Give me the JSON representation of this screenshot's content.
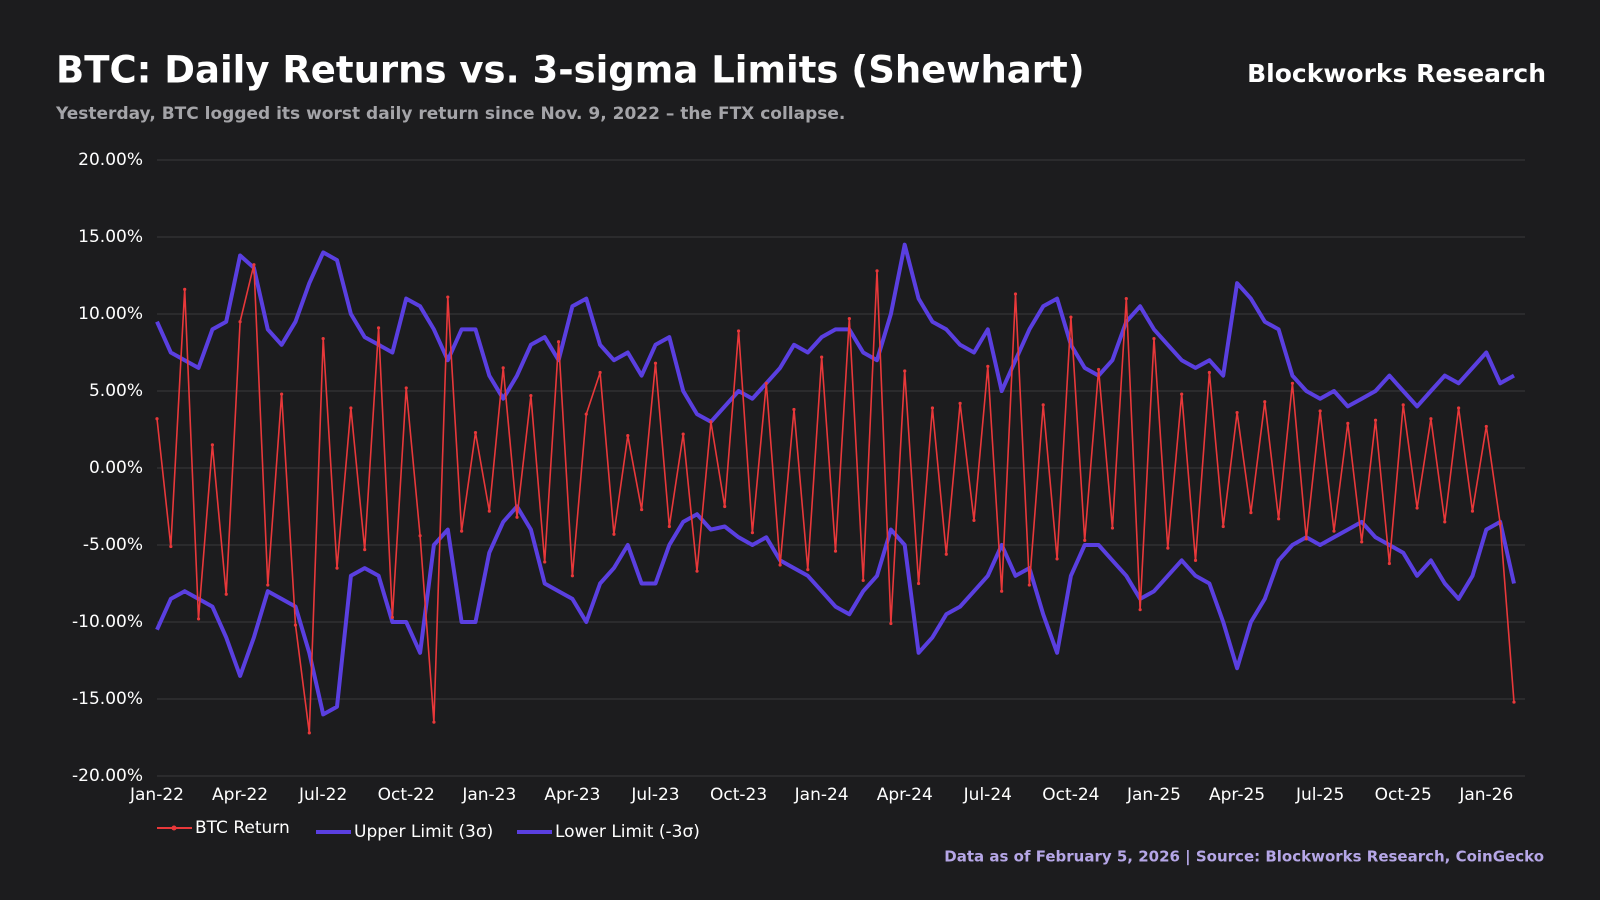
{
  "brand": "Blockworks Research",
  "footer": "Data as of February 5, 2026 | Source: Blockworks Research, CoinGecko",
  "chart_data": {
    "type": "line",
    "title": "BTC: Daily Returns vs. 3-sigma Limits (Shewhart)",
    "subtitle": "Yesterday, BTC logged its worst daily return since Nov. 9, 2022 – the FTX collapse.",
    "categories": [
      "Jan-22",
      null,
      null,
      null,
      null,
      null,
      "Apr-22",
      null,
      null,
      null,
      null,
      null,
      "Jul-22",
      null,
      null,
      null,
      null,
      null,
      "Oct-22",
      null,
      null,
      null,
      null,
      null,
      "Jan-23",
      null,
      null,
      null,
      null,
      null,
      "Apr-23",
      null,
      null,
      null,
      null,
      null,
      "Jul-23",
      null,
      null,
      null,
      null,
      null,
      "Oct-23",
      null,
      null,
      null,
      null,
      null,
      "Jan-24",
      null,
      null,
      null,
      null,
      null,
      "Apr-24",
      null,
      null,
      null,
      null,
      null,
      "Jul-24",
      null,
      null,
      null,
      null,
      null,
      "Oct-24",
      null,
      null,
      null,
      null,
      null,
      "Jan-25",
      null,
      null,
      null,
      null,
      null,
      "Apr-25",
      null,
      null,
      null,
      null,
      null,
      "Jul-25",
      null,
      null,
      null,
      null,
      null,
      "Oct-25",
      null,
      null,
      null,
      null,
      null,
      "Jan-26",
      null,
      null
    ],
    "series": [
      {
        "name": "BTC Return",
        "color": "#e8383a",
        "values": [
          3.2,
          -5.1,
          11.6,
          -9.8,
          1.5,
          -8.2,
          9.5,
          13.2,
          -7.6,
          4.8,
          -10.2,
          -17.2,
          8.4,
          -6.5,
          3.9,
          -5.3,
          9.1,
          -9.7,
          5.2,
          -4.4,
          -16.5,
          11.1,
          -4.1,
          2.3,
          -2.8,
          6.5,
          -3.2,
          4.7,
          -6.1,
          8.2,
          -7.0,
          3.5,
          6.2,
          -4.3,
          2.1,
          -2.7,
          6.8,
          -3.8,
          2.2,
          -6.7,
          3.0,
          -2.5,
          8.9,
          -4.2,
          5.5,
          -6.3,
          3.8,
          -6.6,
          7.2,
          -5.4,
          9.7,
          -7.3,
          12.8,
          -10.1,
          6.3,
          -7.5,
          3.9,
          -5.6,
          4.2,
          -3.4,
          6.6,
          -8.0,
          11.3,
          -7.6,
          4.1,
          -5.9,
          9.8,
          -4.7,
          6.4,
          -3.9,
          11.0,
          -9.2,
          8.4,
          -5.2,
          4.8,
          -6.0,
          6.2,
          -3.8,
          3.6,
          -2.9,
          4.3,
          -3.3,
          5.5,
          -4.6,
          3.7,
          -4.1,
          2.9,
          -4.8,
          3.1,
          -6.2,
          4.1,
          -2.6,
          3.2,
          -3.5,
          3.9,
          -2.8,
          2.7,
          -3.6,
          -15.2
        ]
      },
      {
        "name": "Upper Limit (3σ)",
        "color": "#5a3fe0",
        "values": [
          9.5,
          7.5,
          7,
          6.5,
          9,
          9.5,
          13.8,
          13,
          9,
          8,
          9.5,
          12,
          14,
          13.5,
          10,
          8.5,
          8,
          7.5,
          11,
          10.5,
          9,
          7,
          9,
          9,
          6,
          4.5,
          6,
          8,
          8.5,
          7,
          10.5,
          11,
          8,
          7,
          7.5,
          6,
          8,
          8.5,
          5,
          3.5,
          3,
          4,
          5,
          4.5,
          5.5,
          6.5,
          8,
          7.5,
          8.5,
          9,
          9,
          7.5,
          7,
          10,
          14.5,
          11,
          9.5,
          9,
          8,
          7.5,
          9,
          5,
          7,
          9,
          10.5,
          11,
          8,
          6.5,
          6,
          7,
          9.5,
          10.5,
          9,
          8,
          7,
          6.5,
          7,
          6,
          12,
          11,
          9.5,
          9,
          6,
          5,
          4.5,
          5,
          4,
          4.5,
          5,
          6,
          5,
          4,
          5,
          6,
          5.5,
          6.5,
          7.5,
          5.5,
          6
        ]
      },
      {
        "name": "Lower Limit (-3σ)",
        "color": "#5a3fe0",
        "values": [
          -10.5,
          -8.5,
          -8,
          -8.5,
          -9,
          -11,
          -13.5,
          -11,
          -8,
          -8.5,
          -9,
          -12,
          -16,
          -15.5,
          -7,
          -6.5,
          -7,
          -10,
          -10,
          -12,
          -5,
          -4,
          -10,
          -10,
          -5.5,
          -3.5,
          -2.5,
          -4,
          -7.5,
          -8,
          -8.5,
          -10,
          -7.5,
          -6.5,
          -5,
          -7.5,
          -7.5,
          -5,
          -3.5,
          -3,
          -4,
          -3.8,
          -4.5,
          -5,
          -4.5,
          -6,
          -6.5,
          -7,
          -8,
          -9,
          -9.5,
          -8,
          -7,
          -4,
          -5,
          -12,
          -11,
          -9.5,
          -9,
          -8,
          -7,
          -5,
          -7,
          -6.5,
          -9.5,
          -12,
          -7,
          -5,
          -5,
          -6,
          -7,
          -8.5,
          -8,
          -7,
          -6,
          -7,
          -7.5,
          -10,
          -13,
          -10,
          -8.5,
          -6,
          -5,
          -4.5,
          -5,
          -4.5,
          -4,
          -3.5,
          -4.5,
          -5,
          -5.5,
          -7,
          -6,
          -7.5,
          -8.5,
          -7,
          -4,
          -3.5,
          -7.5
        ]
      }
    ],
    "ylim": [
      -20,
      20
    ],
    "yticks": [
      {
        "value": 20,
        "label": "20.00%"
      },
      {
        "value": 15,
        "label": "15.00%"
      },
      {
        "value": 10,
        "label": "10.00%"
      },
      {
        "value": 5,
        "label": "5.00%"
      },
      {
        "value": 0,
        "label": "0.00%"
      },
      {
        "value": -5,
        "label": "-5.00%"
      },
      {
        "value": -10,
        "label": "-10.00%"
      },
      {
        "value": -15,
        "label": "-15.00%"
      },
      {
        "value": -20,
        "label": "-20.00%"
      }
    ],
    "grid": true
  }
}
